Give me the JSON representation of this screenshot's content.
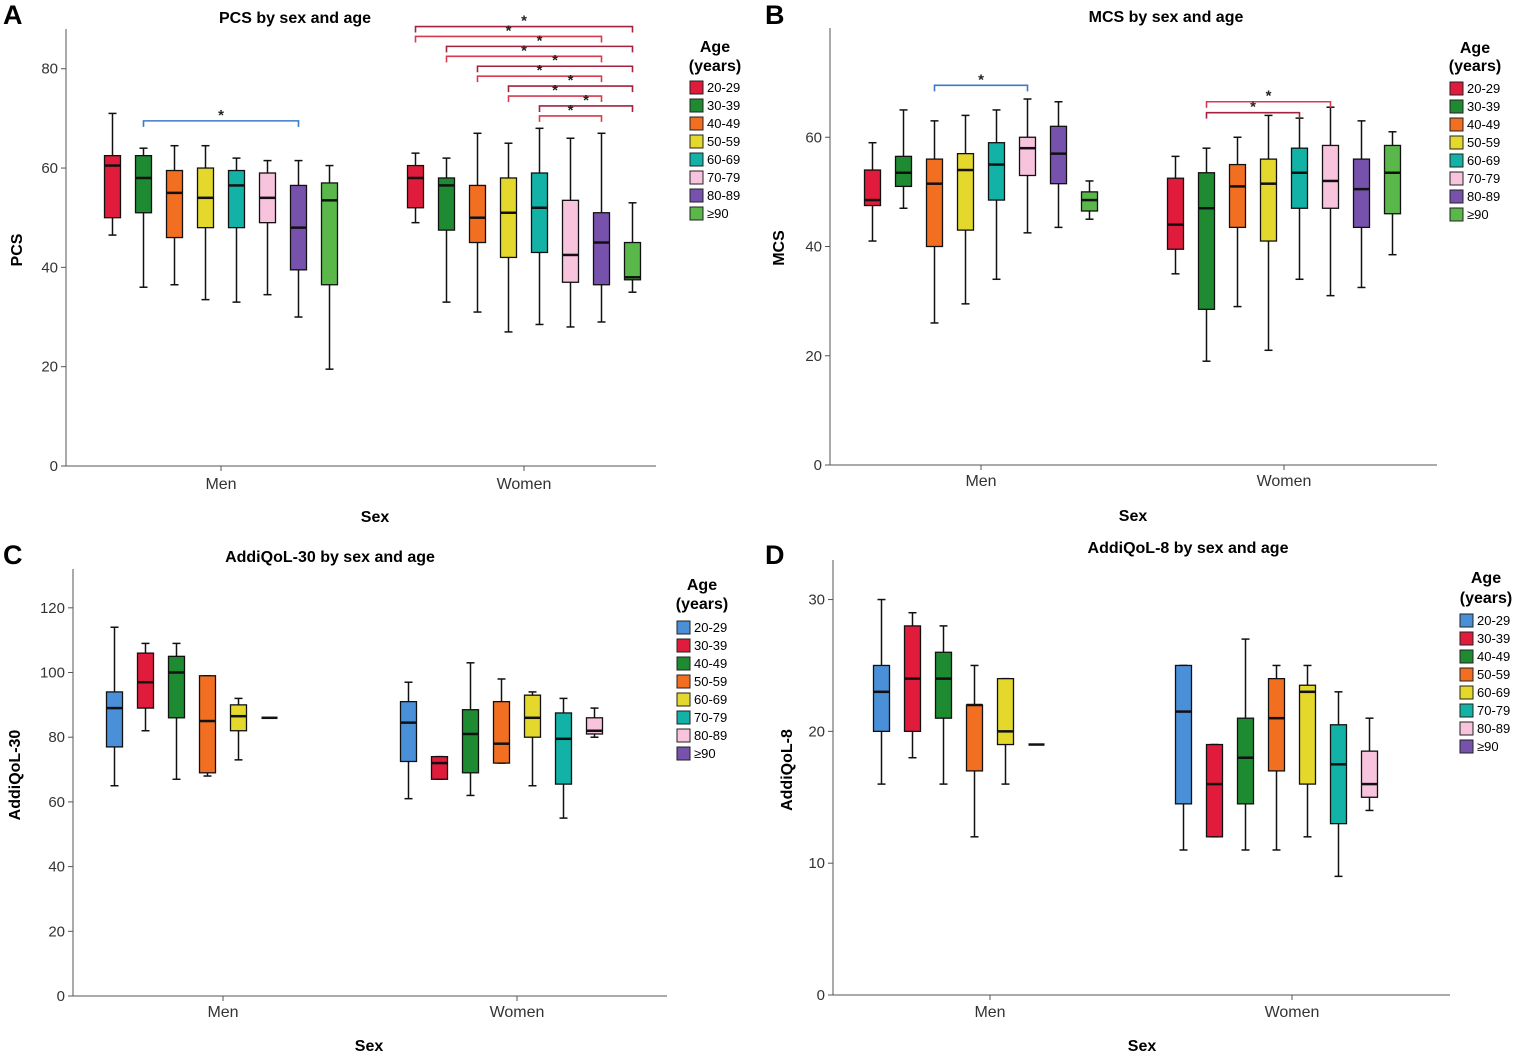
{
  "figure": {
    "panel_letters": [
      "A",
      "B",
      "C",
      "D"
    ]
  },
  "legend": {
    "title_line1": "Age",
    "title_line2": "(years)"
  },
  "chart_data": [
    {
      "panel": "A",
      "type": "boxplot",
      "title": "PCS by sex and age",
      "xlabel": "Sex",
      "ylabel": "PCS",
      "ylim": [
        0,
        88
      ],
      "yticks": [
        0,
        20,
        40,
        60,
        80
      ],
      "categories": [
        "Men",
        "Women"
      ],
      "age_groups": [
        "20-29",
        "30-39",
        "40-49",
        "50-59",
        "60-69",
        "70-79",
        "80-89",
        "≥90"
      ],
      "colors": [
        "#e01b3c",
        "#1e8a32",
        "#f26e21",
        "#e4d82c",
        "#12b3a6",
        "#f8c3dc",
        "#7752ac",
        "#5ab74a"
      ],
      "series": [
        {
          "name": "20-29",
          "boxes": [
            {
              "min": 46.5,
              "q1": 50,
              "median": 60.5,
              "q3": 62.5,
              "max": 71
            },
            {
              "min": 49,
              "q1": 52,
              "median": 58,
              "q3": 60.5,
              "max": 63
            }
          ]
        },
        {
          "name": "30-39",
          "boxes": [
            {
              "min": 36,
              "q1": 51,
              "median": 58,
              "q3": 62.5,
              "max": 64
            },
            {
              "min": 33,
              "q1": 47.5,
              "median": 56.5,
              "q3": 58,
              "max": 62
            }
          ]
        },
        {
          "name": "40-49",
          "boxes": [
            {
              "min": 36.5,
              "q1": 46,
              "median": 55,
              "q3": 59.5,
              "max": 64.5
            },
            {
              "min": 31,
              "q1": 45,
              "median": 50,
              "q3": 56.5,
              "max": 67
            }
          ]
        },
        {
          "name": "50-59",
          "boxes": [
            {
              "min": 33.5,
              "q1": 48,
              "median": 54,
              "q3": 60,
              "max": 64.5
            },
            {
              "min": 27,
              "q1": 42,
              "median": 51,
              "q3": 58,
              "max": 65
            }
          ]
        },
        {
          "name": "60-69",
          "boxes": [
            {
              "min": 33,
              "q1": 48,
              "median": 56.5,
              "q3": 59.5,
              "max": 62
            },
            {
              "min": 28.5,
              "q1": 43,
              "median": 52,
              "q3": 59,
              "max": 68
            }
          ]
        },
        {
          "name": "70-79",
          "boxes": [
            {
              "min": 34.5,
              "q1": 49,
              "median": 54,
              "q3": 59,
              "max": 61.5
            },
            {
              "min": 28,
              "q1": 37,
              "median": 42.5,
              "q3": 53.5,
              "max": 66
            }
          ]
        },
        {
          "name": "80-89",
          "boxes": [
            {
              "min": 30,
              "q1": 39.5,
              "median": 48,
              "q3": 56.5,
              "max": 61.5
            },
            {
              "min": 29,
              "q1": 36.5,
              "median": 45,
              "q3": 51,
              "max": 67
            }
          ]
        },
        {
          "name": "≥90",
          "boxes": [
            {
              "min": 19.5,
              "q1": 36.5,
              "median": 53.5,
              "q3": 57,
              "max": 60.5
            },
            {
              "min": 35,
              "q1": 37.5,
              "median": 38,
              "q3": 45,
              "max": 53
            }
          ]
        }
      ],
      "significance": [
        {
          "sex": 0,
          "from": 1,
          "to": 6,
          "label": "*",
          "color": "#3a7ac9",
          "y": 69.5
        },
        {
          "sex": 1,
          "from": 0,
          "to": 7,
          "label": "*",
          "color": "#a3223e",
          "y": 88.5
        },
        {
          "sex": 1,
          "from": 0,
          "to": 6,
          "label": "*",
          "color": "#d83a4e",
          "y": 86.5
        },
        {
          "sex": 1,
          "from": 1,
          "to": 7,
          "label": "*",
          "color": "#a3223e",
          "y": 84.5
        },
        {
          "sex": 1,
          "from": 1,
          "to": 6,
          "label": "*",
          "color": "#d83a4e",
          "y": 82.5
        },
        {
          "sex": 1,
          "from": 2,
          "to": 7,
          "label": "*",
          "color": "#a3223e",
          "y": 80.5
        },
        {
          "sex": 1,
          "from": 2,
          "to": 6,
          "label": "*",
          "color": "#d83a4e",
          "y": 78.5
        },
        {
          "sex": 1,
          "from": 3,
          "to": 7,
          "label": "*",
          "color": "#a3223e",
          "y": 76.5
        },
        {
          "sex": 1,
          "from": 3,
          "to": 6,
          "label": "*",
          "color": "#d83a4e",
          "y": 74.5
        },
        {
          "sex": 1,
          "from": 4,
          "to": 7,
          "label": "*",
          "color": "#a3223e",
          "y": 72.5
        },
        {
          "sex": 1,
          "from": 4,
          "to": 6,
          "label": "*",
          "color": "#d83a4e",
          "y": 70.5
        }
      ]
    },
    {
      "panel": "B",
      "type": "boxplot",
      "title": "MCS by sex and age",
      "xlabel": "Sex",
      "ylabel": "MCS",
      "ylim": [
        0,
        80
      ],
      "yticks": [
        0,
        20,
        40,
        60
      ],
      "categories": [
        "Men",
        "Women"
      ],
      "age_groups": [
        "20-29",
        "30-39",
        "40-49",
        "50-59",
        "60-69",
        "70-79",
        "80-89",
        "≥90"
      ],
      "colors": [
        "#e01b3c",
        "#1e8a32",
        "#f26e21",
        "#e4d82c",
        "#12b3a6",
        "#f8c3dc",
        "#7752ac",
        "#5ab74a"
      ],
      "series": [
        {
          "name": "20-29",
          "boxes": [
            {
              "min": 41,
              "q1": 47.5,
              "median": 48.5,
              "q3": 54,
              "max": 59
            },
            {
              "min": 35,
              "q1": 39.5,
              "median": 44,
              "q3": 52.5,
              "max": 56.5
            }
          ]
        },
        {
          "name": "30-39",
          "boxes": [
            {
              "min": 47,
              "q1": 51,
              "median": 53.5,
              "q3": 56.5,
              "max": 65
            },
            {
              "min": 19,
              "q1": 28.5,
              "median": 47,
              "q3": 53.5,
              "max": 58
            }
          ]
        },
        {
          "name": "40-49",
          "boxes": [
            {
              "min": 26,
              "q1": 40,
              "median": 51.5,
              "q3": 56,
              "max": 63
            },
            {
              "min": 29,
              "q1": 43.5,
              "median": 51,
              "q3": 55,
              "max": 60
            }
          ]
        },
        {
          "name": "50-59",
          "boxes": [
            {
              "min": 29.5,
              "q1": 43,
              "median": 54,
              "q3": 57,
              "max": 64
            },
            {
              "min": 21,
              "q1": 41,
              "median": 51.5,
              "q3": 56,
              "max": 64
            }
          ]
        },
        {
          "name": "60-69",
          "boxes": [
            {
              "min": 34,
              "q1": 48.5,
              "median": 55,
              "q3": 59,
              "max": 65
            },
            {
              "min": 34,
              "q1": 47,
              "median": 53.5,
              "q3": 58,
              "max": 63.5
            }
          ]
        },
        {
          "name": "70-79",
          "boxes": [
            {
              "min": 42.5,
              "q1": 53,
              "median": 58,
              "q3": 60,
              "max": 67
            },
            {
              "min": 31,
              "q1": 47,
              "median": 52,
              "q3": 58.5,
              "max": 65.5
            }
          ]
        },
        {
          "name": "80-89",
          "boxes": [
            {
              "min": 43.5,
              "q1": 51.5,
              "median": 57,
              "q3": 62,
              "max": 66.5
            },
            {
              "min": 32.5,
              "q1": 43.5,
              "median": 50.5,
              "q3": 56,
              "max": 63
            }
          ]
        },
        {
          "name": "≥90",
          "boxes": [
            {
              "min": 45,
              "q1": 46.5,
              "median": 48.5,
              "q3": 50,
              "max": 52
            },
            {
              "min": 38.5,
              "q1": 46,
              "median": 53.5,
              "q3": 58.5,
              "max": 61
            }
          ]
        }
      ],
      "significance": [
        {
          "sex": 0,
          "from": 2,
          "to": 5,
          "label": "*",
          "color": "#3a7ac9",
          "y": 69.5
        },
        {
          "sex": 1,
          "from": 1,
          "to": 5,
          "label": "*",
          "color": "#d83a4e",
          "y": 66.5
        },
        {
          "sex": 1,
          "from": 1,
          "to": 4,
          "label": "*",
          "color": "#a3223e",
          "y": 64.5
        }
      ]
    },
    {
      "panel": "C",
      "type": "boxplot",
      "title": "AddiQoL-30 by sex and age",
      "xlabel": "Sex",
      "ylabel": "AddiQoL-30",
      "ylim": [
        0,
        132
      ],
      "yticks": [
        0,
        20,
        40,
        60,
        80,
        100,
        120
      ],
      "categories": [
        "Men",
        "Women"
      ],
      "age_groups": [
        "20-29",
        "30-39",
        "40-49",
        "50-59",
        "60-69",
        "70-79",
        "80-89",
        "≥90"
      ],
      "colors": [
        "#4a90d9",
        "#e01b3c",
        "#1e8a32",
        "#f26e21",
        "#e4d82c",
        "#12b3a6",
        "#f8c3dc",
        "#7752ac"
      ],
      "series": [
        {
          "name": "20-29",
          "boxes": [
            {
              "min": 65,
              "q1": 77,
              "median": 89,
              "q3": 94,
              "max": 114
            },
            {
              "min": 61,
              "q1": 72.5,
              "median": 84.5,
              "q3": 91,
              "max": 97
            }
          ]
        },
        {
          "name": "30-39",
          "boxes": [
            {
              "min": 82,
              "q1": 89,
              "median": 97,
              "q3": 106,
              "max": 109
            },
            {
              "min": 67,
              "q1": 67,
              "median": 72,
              "q3": 74,
              "max": 74
            }
          ]
        },
        {
          "name": "40-49",
          "boxes": [
            {
              "min": 67,
              "q1": 86,
              "median": 100,
              "q3": 105,
              "max": 109
            },
            {
              "min": 62,
              "q1": 69,
              "median": 81,
              "q3": 88.5,
              "max": 103
            }
          ]
        },
        {
          "name": "50-59",
          "boxes": [
            {
              "min": 68,
              "q1": 69,
              "median": 85,
              "q3": 99,
              "max": 99
            },
            {
              "min": 72,
              "q1": 72,
              "median": 78,
              "q3": 91,
              "max": 98
            }
          ]
        },
        {
          "name": "60-69",
          "boxes": [
            {
              "min": 73,
              "q1": 82,
              "median": 86.5,
              "q3": 90,
              "max": 92
            },
            {
              "min": 65,
              "q1": 80,
              "median": 86,
              "q3": 93,
              "max": 94
            }
          ]
        },
        {
          "name": "70-79",
          "boxes": [
            {
              "min": 86,
              "q1": 86,
              "median": 86,
              "q3": 86,
              "max": 86
            },
            {
              "min": 55,
              "q1": 65.5,
              "median": 79.5,
              "q3": 87.5,
              "max": 92
            }
          ]
        },
        {
          "name": "80-89",
          "boxes": [
            null,
            {
              "min": 80,
              "q1": 81,
              "median": 82,
              "q3": 86,
              "max": 89
            }
          ]
        },
        {
          "name": "≥90",
          "boxes": [
            null,
            null
          ]
        }
      ],
      "significance": []
    },
    {
      "panel": "D",
      "type": "boxplot",
      "title": "AddiQoL-8 by sex and age",
      "xlabel": "Sex",
      "ylabel": "AddiQoL-8",
      "ylim": [
        0,
        33
      ],
      "yticks": [
        0,
        10,
        20,
        30
      ],
      "categories": [
        "Men",
        "Women"
      ],
      "age_groups": [
        "20-29",
        "30-39",
        "40-49",
        "50-59",
        "60-69",
        "70-79",
        "80-89",
        "≥90"
      ],
      "colors": [
        "#4a90d9",
        "#e01b3c",
        "#1e8a32",
        "#f26e21",
        "#e4d82c",
        "#12b3a6",
        "#f8c3dc",
        "#7752ac"
      ],
      "series": [
        {
          "name": "20-29",
          "boxes": [
            {
              "min": 16,
              "q1": 20,
              "median": 23,
              "q3": 25,
              "max": 30
            },
            {
              "min": 11,
              "q1": 14.5,
              "median": 21.5,
              "q3": 25,
              "max": 25
            }
          ]
        },
        {
          "name": "30-39",
          "boxes": [
            {
              "min": 18,
              "q1": 20,
              "median": 24,
              "q3": 28,
              "max": 29
            },
            {
              "min": 12,
              "q1": 12,
              "median": 16,
              "q3": 19,
              "max": 19
            }
          ]
        },
        {
          "name": "40-49",
          "boxes": [
            {
              "min": 16,
              "q1": 21,
              "median": 24,
              "q3": 26,
              "max": 28
            },
            {
              "min": 11,
              "q1": 14.5,
              "median": 18,
              "q3": 21,
              "max": 27
            }
          ]
        },
        {
          "name": "50-59",
          "boxes": [
            {
              "min": 12,
              "q1": 17,
              "median": 22,
              "q3": 22,
              "max": 25
            },
            {
              "min": 11,
              "q1": 17,
              "median": 21,
              "q3": 24,
              "max": 25
            }
          ]
        },
        {
          "name": "60-69",
          "boxes": [
            {
              "min": 16,
              "q1": 19,
              "median": 20,
              "q3": 24,
              "max": 24
            },
            {
              "min": 12,
              "q1": 16,
              "median": 23,
              "q3": 23.5,
              "max": 25
            }
          ]
        },
        {
          "name": "70-79",
          "boxes": [
            {
              "min": 19,
              "q1": 19,
              "median": 19,
              "q3": 19,
              "max": 19
            },
            {
              "min": 9,
              "q1": 13,
              "median": 17.5,
              "q3": 20.5,
              "max": 23
            }
          ]
        },
        {
          "name": "80-89",
          "boxes": [
            null,
            {
              "min": 14,
              "q1": 15,
              "median": 16,
              "q3": 18.5,
              "max": 21
            }
          ]
        },
        {
          "name": "≥90",
          "boxes": [
            null,
            null
          ]
        }
      ],
      "significance": []
    }
  ]
}
